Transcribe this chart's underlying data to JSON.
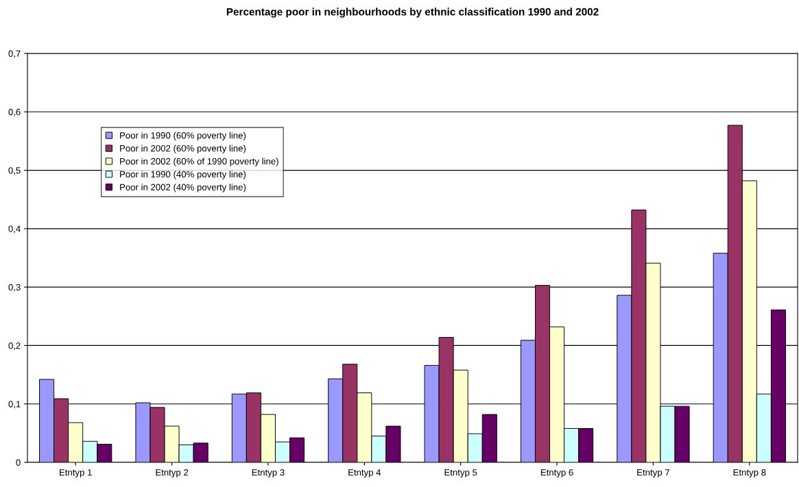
{
  "chart_data": {
    "type": "bar",
    "title": "Percentage poor in neighbourhoods by ethnic classification 1990 and 2002",
    "categories": [
      "Etntyp 1",
      "Etntyp 2",
      "Etntyp 3",
      "Etntyp 4",
      "Etntyp 5",
      "Etntyp 6",
      "Etntyp 7",
      "Etntyp 8"
    ],
    "series": [
      {
        "name": "Poor in 1990 (60% poverty line)",
        "color": "#9999ff",
        "values": [
          0.142,
          0.102,
          0.117,
          0.143,
          0.166,
          0.209,
          0.286,
          0.358
        ]
      },
      {
        "name": "Poor in 2002 (60% poverty line)",
        "color": "#993366",
        "values": [
          0.109,
          0.094,
          0.119,
          0.168,
          0.214,
          0.303,
          0.432,
          0.577
        ]
      },
      {
        "name": "Poor in 2002 (60% of 1990 poverty line)",
        "color": "#ffffcc",
        "values": [
          0.068,
          0.062,
          0.082,
          0.119,
          0.158,
          0.232,
          0.341,
          0.482
        ]
      },
      {
        "name": "Poor in 1990 (40% poverty line)",
        "color": "#ccffff",
        "values": [
          0.036,
          0.03,
          0.035,
          0.045,
          0.049,
          0.058,
          0.096,
          0.117
        ]
      },
      {
        "name": "Poor in 2002 (40% poverty line)",
        "color": "#660066",
        "values": [
          0.031,
          0.033,
          0.042,
          0.062,
          0.082,
          0.058,
          0.096,
          0.261
        ]
      }
    ],
    "ylim": [
      0,
      0.7
    ],
    "yticks": [
      {
        "value": 0,
        "label": "0"
      },
      {
        "value": 0.1,
        "label": "0,1"
      },
      {
        "value": 0.2,
        "label": "0,2"
      },
      {
        "value": 0.3,
        "label": "0,3"
      },
      {
        "value": 0.4,
        "label": "0,4"
      },
      {
        "value": 0.5,
        "label": "0,5"
      },
      {
        "value": 0.6,
        "label": "0,6"
      },
      {
        "value": 0.7,
        "label": "0,7"
      }
    ],
    "grid": "y",
    "legend": "top left"
  }
}
